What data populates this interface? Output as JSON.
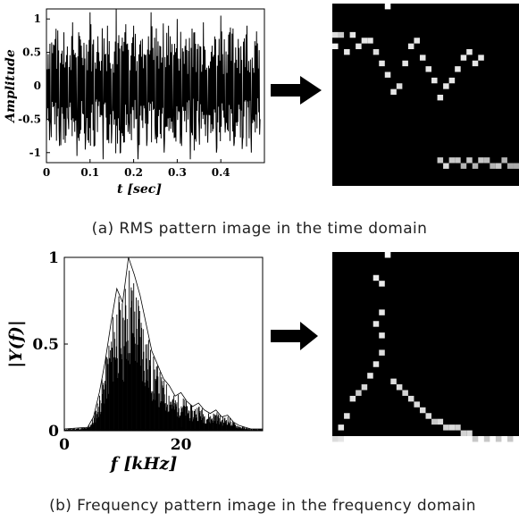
{
  "captions": {
    "a": "(a) RMS pattern image in the time domain",
    "b": "(b) Frequency pattern image in the frequency domain"
  },
  "chart_data": [
    {
      "type": "line",
      "panel": "a",
      "title": "",
      "xlabel": "t [sec]",
      "ylabel": "Amplitude",
      "xlim": [
        0,
        0.5
      ],
      "ylim": [
        -1.15,
        1.15
      ],
      "xticks": [
        0,
        0.1,
        0.2,
        0.3,
        0.4
      ],
      "xtick_labels": [
        "0",
        "0.1",
        "0.2",
        "0.3",
        "0.4"
      ],
      "yticks": [
        1,
        0.5,
        0,
        -0.5,
        -1
      ],
      "ytick_labels": [
        "1",
        "0.5",
        "0",
        "-0.5",
        "-1"
      ],
      "grid": false,
      "series": [
        {
          "x": [
            0.0,
            0.01,
            0.02,
            0.03,
            0.04,
            0.05,
            0.06,
            0.07,
            0.08,
            0.09,
            0.1,
            0.11,
            0.12,
            0.13,
            0.14,
            0.15,
            0.16,
            0.17,
            0.18,
            0.19,
            0.2,
            0.21,
            0.22,
            0.23,
            0.24,
            0.25,
            0.26,
            0.27,
            0.28,
            0.29,
            0.3,
            0.31,
            0.32,
            0.33,
            0.34,
            0.35,
            0.36,
            0.37,
            0.38,
            0.39,
            0.4,
            0.41,
            0.42,
            0.43,
            0.44,
            0.45,
            0.46,
            0.47,
            0.48,
            0.49
          ],
          "y": [
            0.1,
            -0.6,
            0.7,
            -0.9,
            0.8,
            -0.5,
            0.95,
            -1.05,
            0.6,
            -0.8,
            1.1,
            -0.9,
            0.5,
            -1.1,
            0.9,
            -0.7,
            1.15,
            -1.0,
            0.8,
            -0.6,
            0.9,
            -1.1,
            0.7,
            -0.9,
            1.1,
            -0.8,
            0.6,
            -1.0,
            0.9,
            -0.7,
            1.0,
            -0.9,
            0.7,
            -1.1,
            0.8,
            -0.6,
            0.95,
            -0.85,
            0.6,
            -1.0,
            1.05,
            -0.7,
            0.8,
            -0.9,
            0.7,
            -0.8,
            0.9,
            -1.0,
            0.6,
            -0.5
          ]
        }
      ]
    },
    {
      "type": "heatmap",
      "panel": "a-pattern",
      "grid_size": [
        32,
        32
      ],
      "cells": [
        [
          9,
          0,
          255
        ],
        [
          0,
          7,
          240
        ],
        [
          0,
          5,
          220
        ],
        [
          1,
          5,
          200
        ],
        [
          2,
          8,
          230
        ],
        [
          3,
          5,
          230
        ],
        [
          4,
          7,
          230
        ],
        [
          5,
          6,
          230
        ],
        [
          6,
          6,
          230
        ],
        [
          7,
          8,
          220
        ],
        [
          8,
          10,
          230
        ],
        [
          9,
          12,
          230
        ],
        [
          10,
          15,
          230
        ],
        [
          11,
          14,
          220
        ],
        [
          12,
          10,
          230
        ],
        [
          13,
          7,
          230
        ],
        [
          14,
          6,
          230
        ],
        [
          15,
          9,
          230
        ],
        [
          16,
          11,
          230
        ],
        [
          17,
          13,
          230
        ],
        [
          18,
          16,
          230
        ],
        [
          19,
          14,
          230
        ],
        [
          20,
          13,
          230
        ],
        [
          21,
          11,
          230
        ],
        [
          22,
          9,
          230
        ],
        [
          23,
          8,
          230
        ],
        [
          24,
          10,
          230
        ],
        [
          25,
          9,
          230
        ],
        [
          18,
          27,
          200
        ],
        [
          19,
          28,
          220
        ],
        [
          20,
          27,
          200
        ],
        [
          21,
          27,
          200
        ],
        [
          22,
          28,
          180
        ],
        [
          23,
          27,
          200
        ],
        [
          24,
          28,
          180
        ],
        [
          25,
          27,
          200
        ],
        [
          26,
          27,
          190
        ],
        [
          27,
          28,
          180
        ],
        [
          28,
          28,
          200
        ],
        [
          29,
          27,
          180
        ],
        [
          30,
          28,
          170
        ],
        [
          31,
          28,
          170
        ]
      ]
    },
    {
      "type": "area",
      "panel": "b",
      "title": "",
      "xlabel": "f [kHz]",
      "ylabel": "|Y(f)|",
      "xlim": [
        0,
        34
      ],
      "ylim": [
        0,
        1
      ],
      "xticks": [
        0,
        20
      ],
      "xtick_labels": [
        "0",
        "20"
      ],
      "yticks": [
        0,
        0.5,
        1
      ],
      "ytick_labels": [
        "0",
        "0.5",
        "1"
      ],
      "grid": false,
      "series": [
        {
          "x": [
            0,
            4,
            5,
            6,
            7,
            8,
            9,
            10,
            11,
            12,
            13,
            14,
            15,
            16,
            17,
            18,
            19,
            20,
            21,
            22,
            23,
            24,
            25,
            26,
            27,
            28,
            29,
            30,
            31,
            32,
            33,
            34
          ],
          "y": [
            0.01,
            0.02,
            0.08,
            0.22,
            0.4,
            0.62,
            0.82,
            0.74,
            1.0,
            0.9,
            0.78,
            0.62,
            0.46,
            0.38,
            0.3,
            0.26,
            0.2,
            0.22,
            0.17,
            0.14,
            0.16,
            0.12,
            0.1,
            0.12,
            0.08,
            0.09,
            0.05,
            0.03,
            0.02,
            0.01,
            0.01,
            0.01
          ]
        }
      ]
    },
    {
      "type": "heatmap",
      "panel": "b-pattern",
      "grid_size": [
        32,
        32
      ],
      "cells": [
        [
          9,
          0,
          255
        ],
        [
          7,
          4,
          235
        ],
        [
          8,
          5,
          235
        ],
        [
          8,
          10,
          230
        ],
        [
          7,
          12,
          230
        ],
        [
          8,
          14,
          230
        ],
        [
          8,
          17,
          220
        ],
        [
          7,
          19,
          230
        ],
        [
          6,
          21,
          230
        ],
        [
          4,
          24,
          200
        ],
        [
          5,
          23,
          215
        ],
        [
          3,
          25,
          225
        ],
        [
          2,
          28,
          225
        ],
        [
          1,
          30,
          230
        ],
        [
          0,
          32,
          220
        ],
        [
          1,
          32,
          230
        ],
        [
          10,
          22,
          220
        ],
        [
          11,
          23,
          220
        ],
        [
          12,
          24,
          210
        ],
        [
          13,
          25,
          220
        ],
        [
          14,
          26,
          220
        ],
        [
          15,
          27,
          220
        ],
        [
          16,
          28,
          220
        ],
        [
          17,
          29,
          200
        ],
        [
          18,
          29,
          220
        ],
        [
          19,
          30,
          210
        ],
        [
          20,
          30,
          220
        ],
        [
          21,
          30,
          210
        ],
        [
          22,
          31,
          210
        ],
        [
          23,
          31,
          220
        ],
        [
          24,
          32,
          200
        ],
        [
          26,
          32,
          200
        ],
        [
          28,
          32,
          200
        ],
        [
          30,
          32,
          200
        ]
      ]
    }
  ]
}
